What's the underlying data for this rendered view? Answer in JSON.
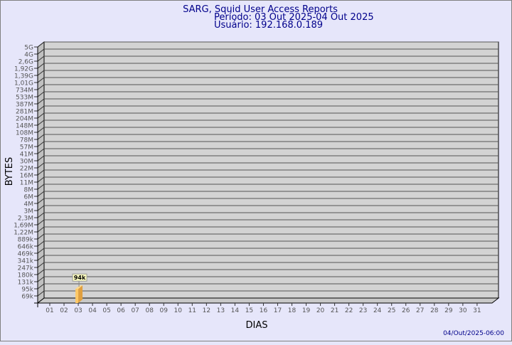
{
  "chart_data": {
    "type": "bar",
    "title": "SARG, Squid User Access Reports",
    "subtitle_lines": [
      "Período: 03 Out 2025-04 Out 2025",
      "Usuário: 192.168.0.189"
    ],
    "xlabel": "DIAS",
    "ylabel": "BYTES",
    "footer": "04/Out/2025-06:00",
    "y_tick_labels": [
      "5G",
      "4G",
      "2,6G",
      "1,92G",
      "1,39G",
      "1,01G",
      "734M",
      "533M",
      "387M",
      "281M",
      "204M",
      "148M",
      "108M",
      "78M",
      "57M",
      "41M",
      "30M",
      "22M",
      "16M",
      "11M",
      "8M",
      "6M",
      "4M",
      "3M",
      "2,3M",
      "1,69M",
      "1,22M",
      "889k",
      "646k",
      "469k",
      "341k",
      "247k",
      "180k",
      "131k",
      "95k",
      "69k"
    ],
    "categories": [
      "01",
      "02",
      "03",
      "04",
      "05",
      "06",
      "07",
      "08",
      "09",
      "10",
      "11",
      "12",
      "13",
      "14",
      "15",
      "16",
      "17",
      "18",
      "19",
      "20",
      "21",
      "22",
      "23",
      "24",
      "25",
      "26",
      "27",
      "28",
      "29",
      "30",
      "31"
    ],
    "values": [
      null,
      null,
      94000,
      null,
      null,
      null,
      null,
      null,
      null,
      null,
      null,
      null,
      null,
      null,
      null,
      null,
      null,
      null,
      null,
      null,
      null,
      null,
      null,
      null,
      null,
      null,
      null,
      null,
      null,
      null,
      null
    ],
    "data_labels": {
      "03": "94k"
    },
    "grid": true,
    "colors": {
      "background": "#e6e6fa",
      "plot": "#d3d3d3",
      "bar": "#ffc966",
      "bar_side": "#e0a040",
      "title": "#00008b"
    }
  }
}
